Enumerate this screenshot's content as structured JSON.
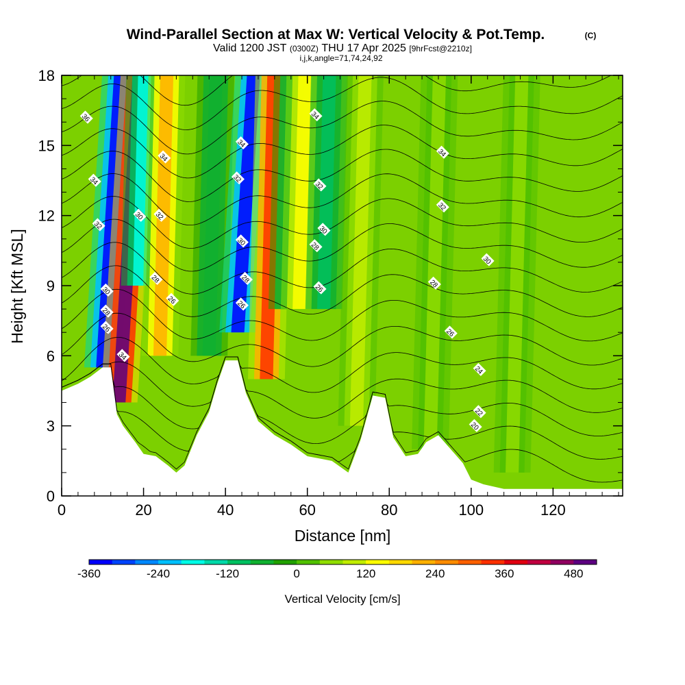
{
  "title": {
    "line1": "Wind-Parallel Section at Max W: Vertical Velocity & Pot.Temp.",
    "copyright": "(C)",
    "line2_a": "Valid 1200 JST",
    "line2_b": "(0300Z)",
    "line2_c": "THU 17 Apr 2025",
    "line2_d": "[9hrFcst@2210z]",
    "line3": "i,j,k,angle=71,74,24,92"
  },
  "chart_data": {
    "type": "heatmap",
    "xlabel": "Distance [nm]",
    "ylabel": "Height [Kft MSL]",
    "xlim": [
      0,
      137
    ],
    "ylim": [
      0,
      18
    ],
    "x_ticks": [
      "0",
      "20",
      "40",
      "60",
      "80",
      "100",
      "120"
    ],
    "y_ticks": [
      "0",
      "3",
      "6",
      "9",
      "12",
      "15",
      "18"
    ],
    "colorbar": {
      "title": "Vertical Velocity [cm/s]",
      "labels": [
        "-360",
        "-240",
        "-120",
        "0",
        "120",
        "240",
        "360",
        "480"
      ],
      "range": [
        -360,
        520
      ],
      "bin_width": 40,
      "colors": [
        "#0000ff",
        "#0044ff",
        "#0088ff",
        "#00c0ff",
        "#00ffe6",
        "#00d8a8",
        "#00c060",
        "#10b030",
        "#20a000",
        "#50c000",
        "#90dc00",
        "#c0ec00",
        "#ffff00",
        "#ffd800",
        "#ffb000",
        "#ff8c00",
        "#ff6000",
        "#ff3000",
        "#e00010",
        "#c00040",
        "#900060",
        "#5c0080"
      ]
    },
    "terrain_kft": [
      [
        0,
        4.5
      ],
      [
        4,
        4.8
      ],
      [
        7,
        5.1
      ],
      [
        10,
        5.5
      ],
      [
        12,
        5.5
      ],
      [
        13.5,
        3.5
      ],
      [
        15,
        3.0
      ],
      [
        18,
        2.3
      ],
      [
        20,
        1.8
      ],
      [
        23,
        1.7
      ],
      [
        26,
        1.3
      ],
      [
        28,
        1.0
      ],
      [
        30,
        1.3
      ],
      [
        33,
        2.6
      ],
      [
        36,
        3.6
      ],
      [
        38,
        4.8
      ],
      [
        40,
        5.8
      ],
      [
        43,
        5.8
      ],
      [
        45,
        4.4
      ],
      [
        48,
        3.2
      ],
      [
        52,
        2.6
      ],
      [
        56,
        2.2
      ],
      [
        60,
        1.7
      ],
      [
        63,
        1.6
      ],
      [
        66,
        1.5
      ],
      [
        70,
        1.0
      ],
      [
        73,
        2.4
      ],
      [
        76,
        4.3
      ],
      [
        79,
        4.2
      ],
      [
        81,
        2.5
      ],
      [
        84,
        1.7
      ],
      [
        87,
        1.8
      ],
      [
        89,
        2.3
      ],
      [
        92,
        2.6
      ],
      [
        95,
        2.0
      ],
      [
        98,
        1.4
      ],
      [
        100,
        0.7
      ],
      [
        103,
        0.5
      ],
      [
        108,
        0.3
      ],
      [
        115,
        0.3
      ],
      [
        125,
        0.3
      ],
      [
        137,
        0.3
      ]
    ],
    "vertical_velocity_bands": [
      {
        "x": 10,
        "y_low": 5.5,
        "y_high": 18,
        "w": -360
      },
      {
        "x": 14,
        "y_low": 4.0,
        "y_high": 18,
        "w": 520
      },
      {
        "x": 19,
        "y_low": 9.0,
        "y_high": 18,
        "w": -180
      },
      {
        "x": 24,
        "y_low": 6.0,
        "y_high": 18,
        "w": 200
      },
      {
        "x": 36,
        "y_low": 6.0,
        "y_high": 18,
        "w": -80
      },
      {
        "x": 43,
        "y_low": 7.0,
        "y_high": 18,
        "w": -360
      },
      {
        "x": 50,
        "y_low": 5.0,
        "y_high": 18,
        "w": 320
      },
      {
        "x": 55,
        "y_low": 8.0,
        "y_high": 18,
        "w": -80
      },
      {
        "x": 58,
        "y_low": 8.0,
        "y_high": 18,
        "w": 140
      },
      {
        "x": 64,
        "y_low": 8.0,
        "y_high": 18,
        "w": -120
      },
      {
        "x": 72,
        "y_low": 3.0,
        "y_high": 18,
        "w": 80
      },
      {
        "x": 90,
        "y_low": 2.0,
        "y_high": 18,
        "w": 60
      },
      {
        "x": 110,
        "y_low": 1.0,
        "y_high": 18,
        "w": 40
      }
    ],
    "potential_temperature_contour_labels": [
      {
        "x": 6,
        "y": 16.2,
        "text": "36"
      },
      {
        "x": 8,
        "y": 13.5,
        "text": "34"
      },
      {
        "x": 9,
        "y": 11.6,
        "text": "32"
      },
      {
        "x": 11,
        "y": 8.8,
        "text": "30"
      },
      {
        "x": 11,
        "y": 7.9,
        "text": "28"
      },
      {
        "x": 11,
        "y": 7.2,
        "text": "26"
      },
      {
        "x": 15,
        "y": 6.0,
        "text": "34"
      },
      {
        "x": 25,
        "y": 14.5,
        "text": "34"
      },
      {
        "x": 24,
        "y": 12.0,
        "text": "32"
      },
      {
        "x": 19,
        "y": 12.0,
        "text": "30"
      },
      {
        "x": 23,
        "y": 9.3,
        "text": "28"
      },
      {
        "x": 27,
        "y": 8.4,
        "text": "26"
      },
      {
        "x": 44,
        "y": 15.1,
        "text": "34"
      },
      {
        "x": 43,
        "y": 13.6,
        "text": "32"
      },
      {
        "x": 44,
        "y": 10.9,
        "text": "30"
      },
      {
        "x": 45,
        "y": 9.3,
        "text": "28"
      },
      {
        "x": 44,
        "y": 8.2,
        "text": "26"
      },
      {
        "x": 62,
        "y": 16.3,
        "text": "34"
      },
      {
        "x": 63,
        "y": 13.3,
        "text": "32"
      },
      {
        "x": 64,
        "y": 11.4,
        "text": "30"
      },
      {
        "x": 62,
        "y": 10.7,
        "text": "28"
      },
      {
        "x": 63,
        "y": 8.9,
        "text": "26"
      },
      {
        "x": 93,
        "y": 14.7,
        "text": "34"
      },
      {
        "x": 93,
        "y": 12.4,
        "text": "32"
      },
      {
        "x": 104,
        "y": 10.1,
        "text": "30"
      },
      {
        "x": 91,
        "y": 9.1,
        "text": "28"
      },
      {
        "x": 95,
        "y": 7.0,
        "text": "26"
      },
      {
        "x": 102,
        "y": 5.4,
        "text": "24"
      },
      {
        "x": 102,
        "y": 3.6,
        "text": "22"
      },
      {
        "x": 101,
        "y": 3.0,
        "text": "20"
      }
    ],
    "grid": false,
    "legend": "colorbar-bottom"
  }
}
